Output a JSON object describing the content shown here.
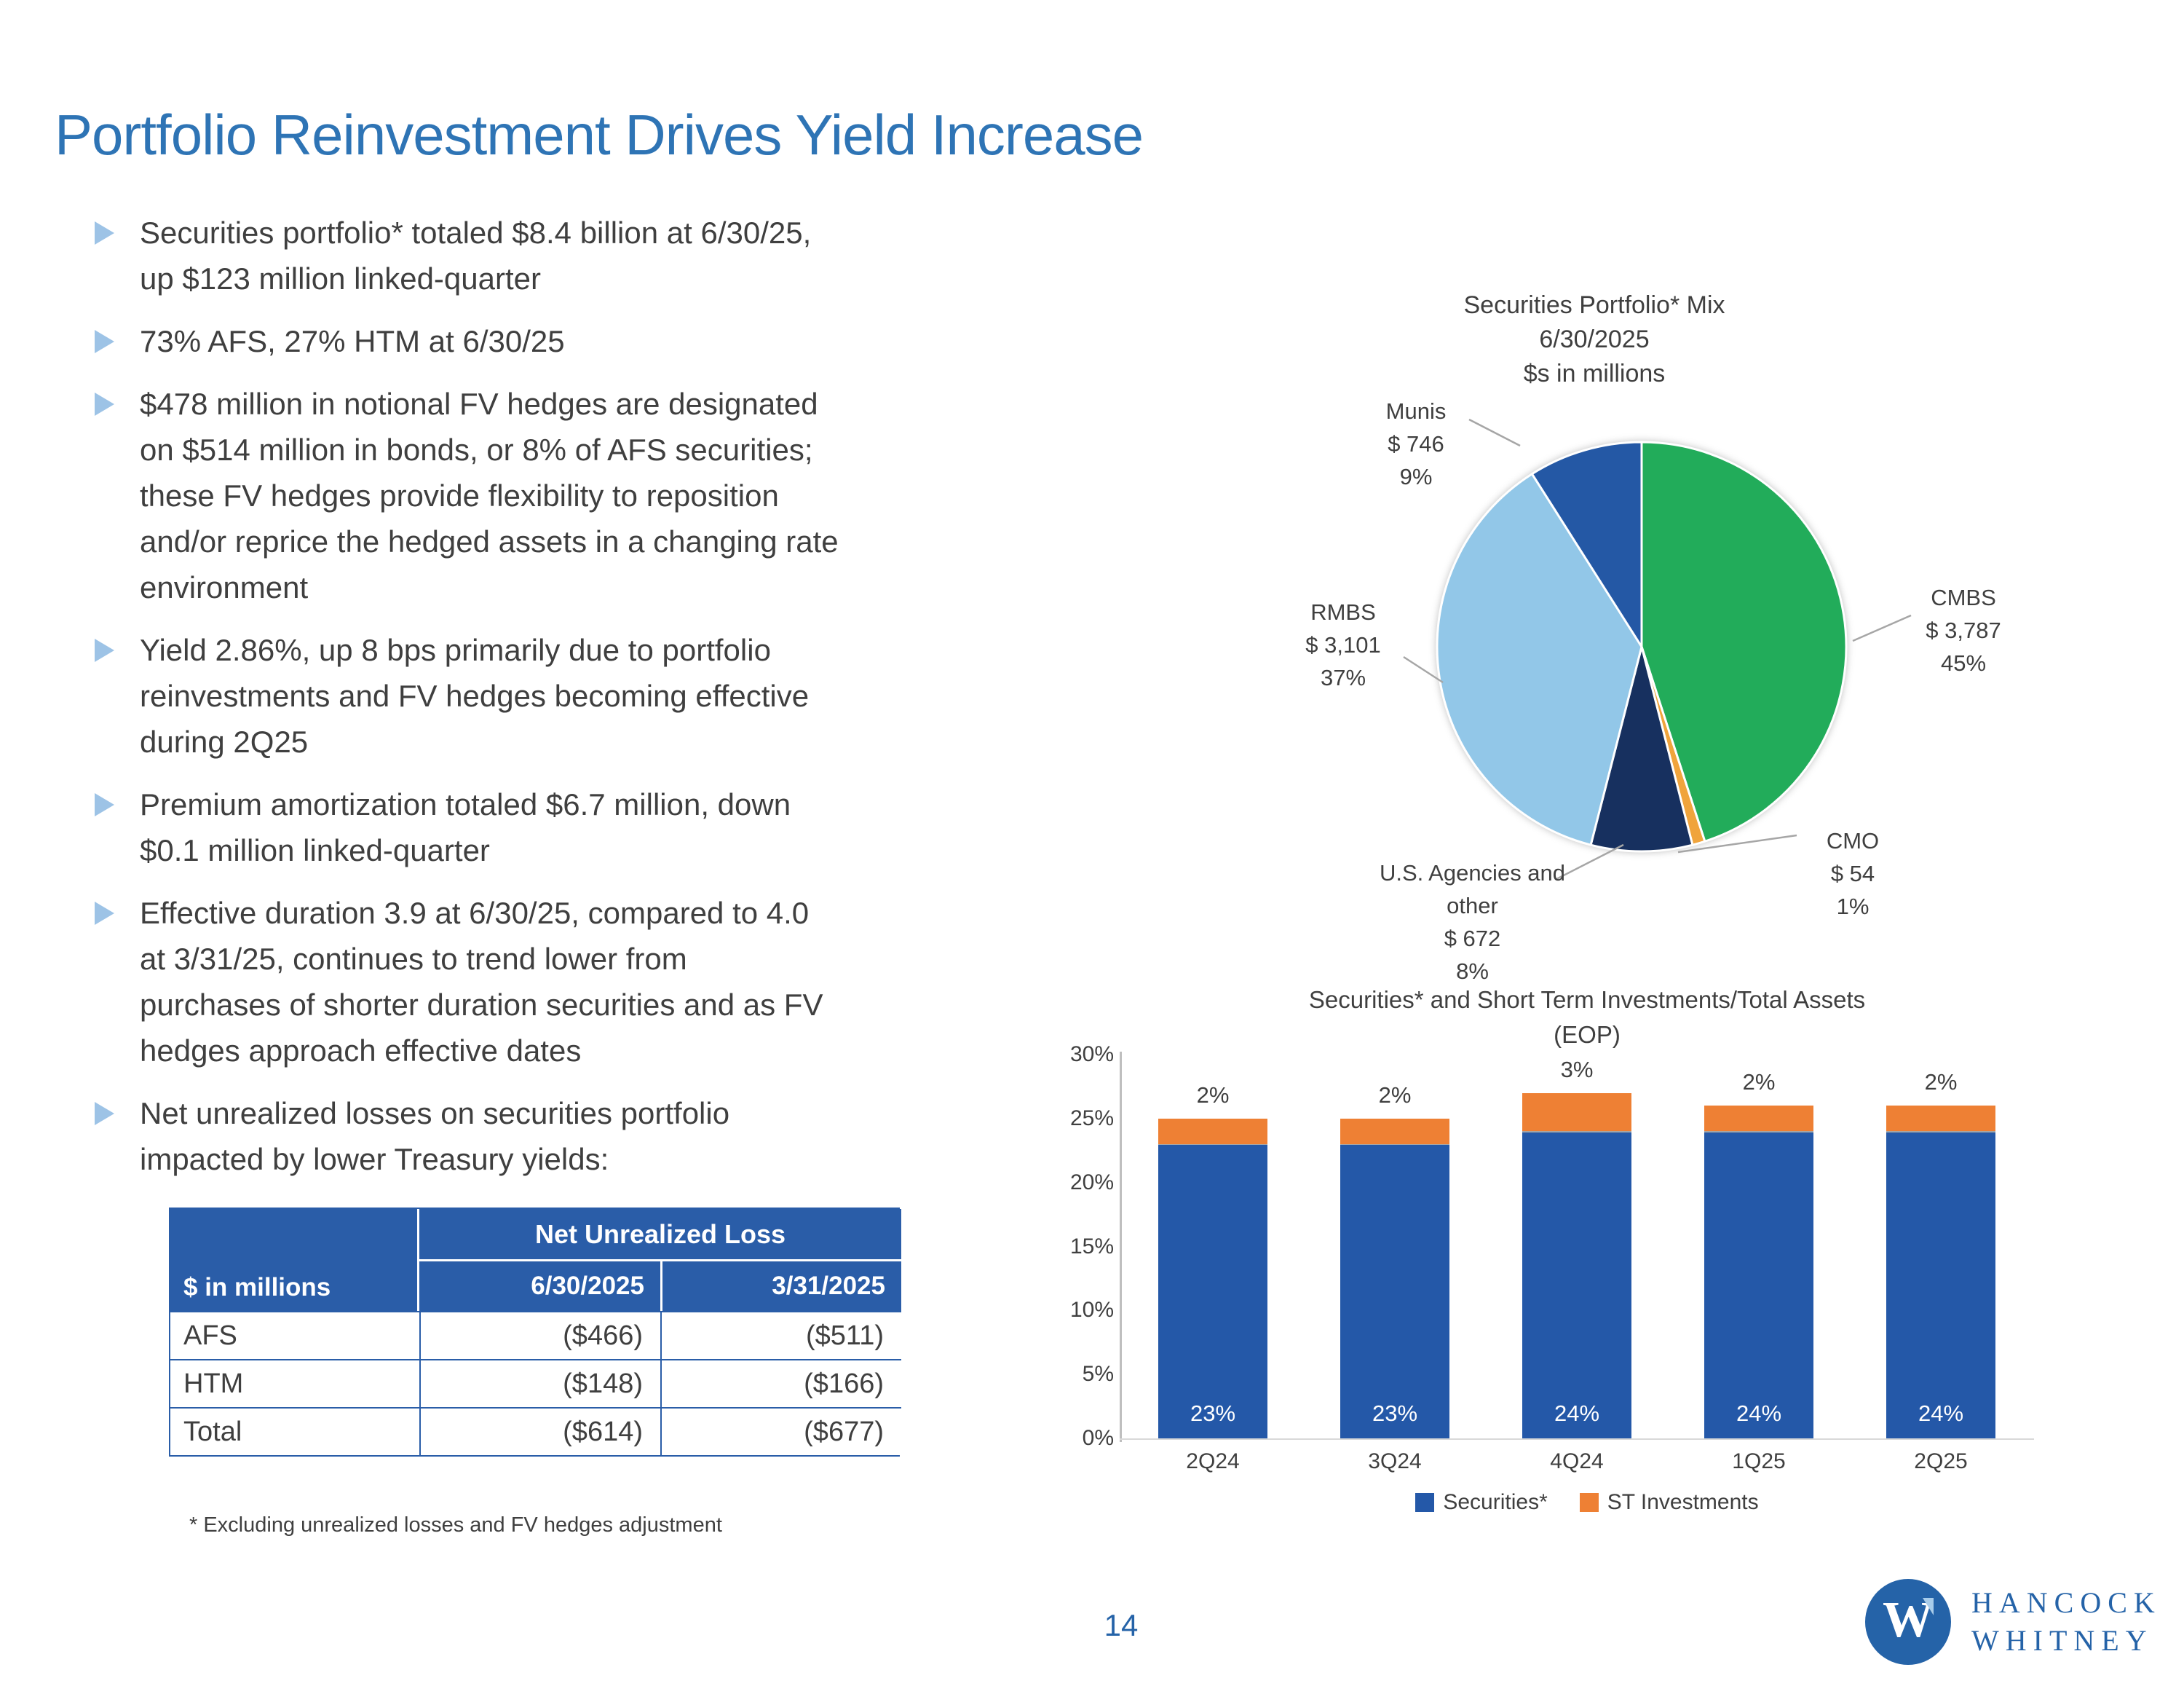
{
  "slide": {
    "title": "Portfolio Reinvestment Drives Yield Increase",
    "bullets": [
      "Securities portfolio* totaled $8.4 billion at 6/30/25,\nup $123 million linked-quarter",
      "73% AFS, 27% HTM at 6/30/25",
      "$478 million in notional FV hedges are designated\non $514 million in bonds, or 8% of AFS securities;\nthese FV hedges provide flexibility to reposition\nand/or reprice the hedged assets in a changing rate\nenvironment",
      "Yield 2.86%, up 8 bps primarily due to portfolio\nreinvestments and FV hedges becoming effective\nduring 2Q25",
      "Premium amortization totaled $6.7 million, down\n$0.1 million linked-quarter",
      "Effective duration 3.9 at 6/30/25, compared to 4.0\nat 3/31/25, continues to trend lower from\npurchases of shorter duration securities and as FV\nhedges approach effective dates",
      "Net unrealized losses on securities portfolio\nimpacted by lower Treasury yields:"
    ],
    "footnote": "* Excluding unrealized losses and FV hedges adjustment",
    "page_number": "14",
    "logo": {
      "monogram": "W",
      "line1": "HANCOCK",
      "line2": "WHITNEY"
    }
  },
  "table": {
    "header_group": "Net Unrealized Loss",
    "col0_header": "$ in millions",
    "columns": [
      "6/30/2025",
      "3/31/2025"
    ],
    "rows": [
      {
        "label": "AFS",
        "values": [
          "($466)",
          "($511)"
        ]
      },
      {
        "label": "HTM",
        "values": [
          "($148)",
          "($166)"
        ]
      },
      {
        "label": "Total",
        "values": [
          "($614)",
          "($677)"
        ]
      }
    ]
  },
  "chart_data": [
    {
      "type": "pie",
      "title": "Securities Portfolio* Mix",
      "subtitle": "6/30/2025",
      "units": "$s in millions",
      "start_angle_deg": -90,
      "direction": "clockwise",
      "slices": [
        {
          "label": "CMBS",
          "amount": "$ 3,787",
          "percent": "45%",
          "value": 45,
          "color": "#22ac5a"
        },
        {
          "label": "CMO",
          "amount": "$ 54",
          "percent": "1%",
          "value": 1,
          "color": "#f0a43c"
        },
        {
          "label": "U.S. Agencies and other",
          "amount": "$ 672",
          "percent": "8%",
          "value": 8,
          "color": "#17305f"
        },
        {
          "label": "RMBS",
          "amount": "$ 3,101",
          "percent": "37%",
          "value": 37,
          "color": "#92c7e8"
        },
        {
          "label": "Munis",
          "amount": "$ 746",
          "percent": "9%",
          "value": 9,
          "color": "#2458a5"
        }
      ]
    },
    {
      "type": "bar",
      "stacked": true,
      "title": "Securities* and Short Term Investments/Total Assets",
      "subtitle": "(EOP)",
      "categories": [
        "2Q24",
        "3Q24",
        "4Q24",
        "1Q25",
        "2Q25"
      ],
      "series": [
        {
          "name": "Securities*",
          "color": "#2458a8",
          "values": [
            23,
            23,
            24,
            24,
            24
          ],
          "labels": [
            "23%",
            "23%",
            "24%",
            "24%",
            "24%"
          ]
        },
        {
          "name": "ST Investments",
          "color": "#ee8034",
          "values": [
            2,
            2,
            3,
            2,
            2
          ],
          "labels": [
            "2%",
            "2%",
            "3%",
            "2%",
            "2%"
          ]
        }
      ],
      "ylim": [
        0,
        30
      ],
      "ytick_step": 5,
      "ytick_labels": [
        "0%",
        "5%",
        "10%",
        "15%",
        "20%",
        "25%",
        "30%"
      ],
      "gridlines": false,
      "legend_position": "bottom",
      "xlabel": "",
      "ylabel": ""
    }
  ],
  "colors": {
    "title_blue": "#2e74b5",
    "text_dark": "#3f3f3f",
    "bullet_marker": "#9dc3e6",
    "table_header_bg": "#2a5da8",
    "bar_blue": "#2458a8",
    "bar_orange": "#ee8034",
    "axis_gray": "#bfbfbf",
    "leader_gray": "#a6a6a6",
    "logo_blue": "#2563a8"
  }
}
